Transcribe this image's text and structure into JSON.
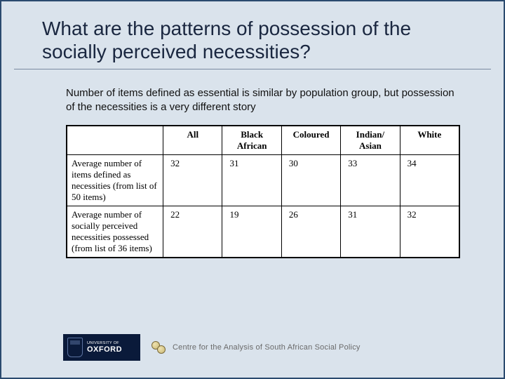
{
  "title": "What are the patterns of possession of the socially perceived necessities?",
  "subtitle": "Number of items defined as essential is similar by population group, but possession of the necessities is a very different story",
  "table": {
    "columns": [
      "",
      "All",
      "Black African",
      "Coloured",
      "Indian/ Asian",
      "White"
    ],
    "rows": [
      {
        "label": "Average number of items defined as necessities (from list of 50 items)",
        "values": [
          "32",
          "31",
          "30",
          "33",
          "34"
        ]
      },
      {
        "label": "Average number of socially perceived necessities possessed (from list of 36 items)",
        "values": [
          "22",
          "19",
          "26",
          "31",
          "32"
        ]
      }
    ]
  },
  "footer": {
    "oxford_top": "UNIVERSITY OF",
    "oxford_main": "OXFORD",
    "centre": "Centre for the Analysis of South African Social Policy"
  },
  "colors": {
    "slide_bg": "#dae3ec",
    "border": "#2a4a6f",
    "title": "#1a2740",
    "oxford_bg": "#0a1a3a",
    "centre_text": "#6a6a6a"
  }
}
